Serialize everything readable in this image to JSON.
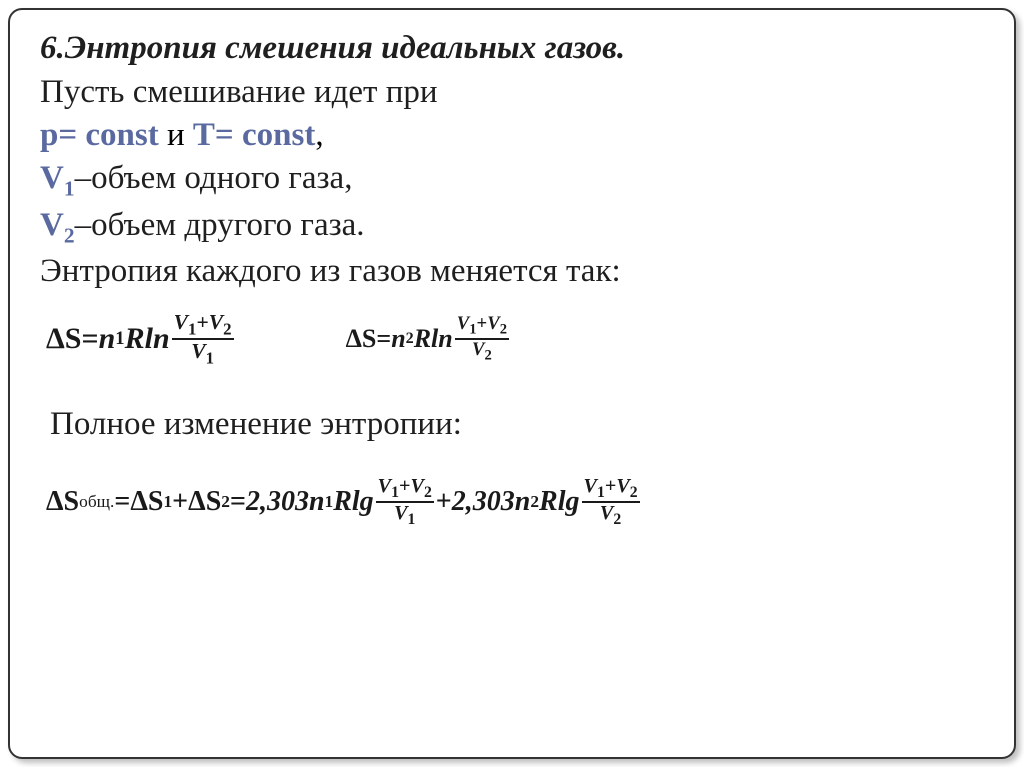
{
  "title": "6.Энтропия смешения идеальных газов.",
  "intro": "Пусть смешивание идет при",
  "cond": {
    "p": "p= const",
    "and": " и ",
    "t": "T= const",
    "comma": ","
  },
  "v1": {
    "sym": "V",
    "sub": "1",
    "text": "–объем одного газа,"
  },
  "v2": {
    "sym": "V",
    "sub": "2",
    "text": "–объем другого газа."
  },
  "entr_text": "Энтропия каждого из газов меняется так:",
  "eq1": {
    "lhs": "ΔS",
    "eq": " = ",
    "coef": "n",
    "coef_sub": "1",
    "rln": "Rln",
    "num_a": "V",
    "num_a_sub": "1",
    "plus": "+",
    "num_b": "V",
    "num_b_sub": "2",
    "den": "V",
    "den_sub": "1"
  },
  "eq2": {
    "lhs": "ΔS",
    "eq": " = ",
    "coef": "n",
    "coef_sub": "2",
    "rln": "Rln",
    "num_a": "V",
    "num_a_sub": "1",
    "plus": "+",
    "num_b": "V",
    "num_b_sub": "2",
    "den": "V",
    "den_sub": "2"
  },
  "full_text": "Полное изменение энтропии:",
  "eqf": {
    "lhs": "ΔS",
    "lhs_sub": "общ.",
    "eq1": " = ",
    "t1": "ΔS",
    "t1_sub": "1",
    "plus1": " + ",
    "t2": "ΔS",
    "t2_sub": "2",
    "eq2": " = ",
    "c1": "2,303n",
    "c1_sub": "1",
    "rlg": "Rlg",
    "f1_num_a": "V",
    "f1_num_a_sub": "1",
    "f1_plus": "+",
    "f1_num_b": "V",
    "f1_num_b_sub": "2",
    "f1_den": "V",
    "f1_den_sub": "1",
    "plus2": " + ",
    "c2": "2,303n",
    "c2_sub": "2",
    "f2_num_a": "V",
    "f2_num_a_sub": "1",
    "f2_plus": "+",
    "f2_num_b": "V",
    "f2_num_b_sub": "2",
    "f2_den": "V",
    "f2_den_sub": "2"
  },
  "colors": {
    "accent": "#5a6aa0",
    "text": "#1f1f1f",
    "border": "#333333",
    "bg": "#ffffff"
  }
}
